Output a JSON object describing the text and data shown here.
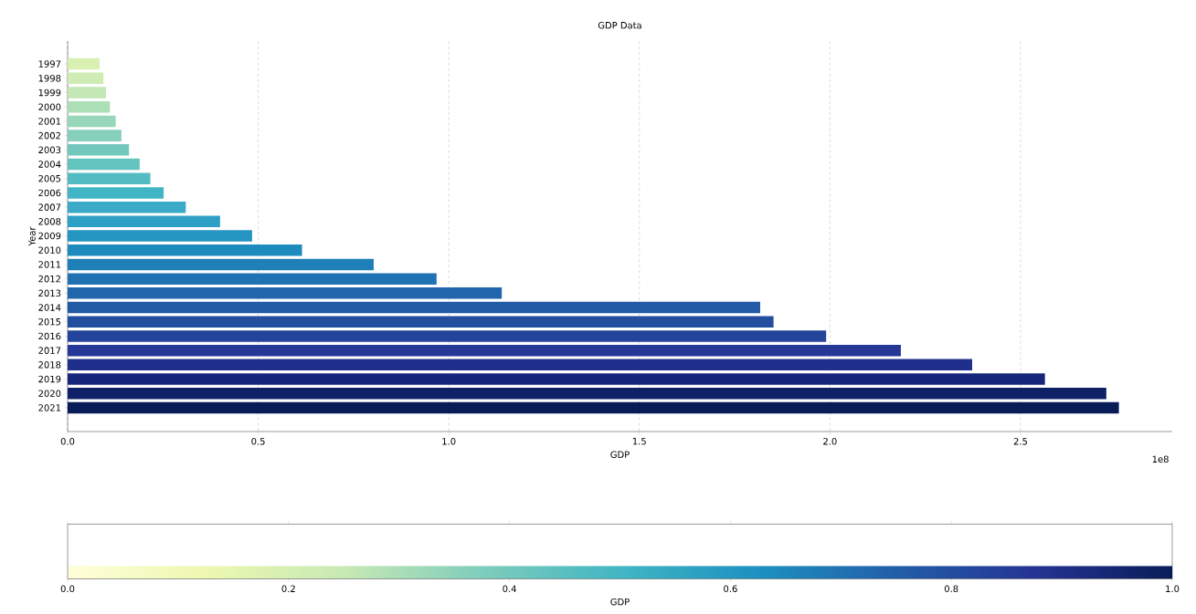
{
  "chart_data": {
    "type": "bar",
    "orientation": "horizontal",
    "title": "GDP Data",
    "xlabel": "GDP",
    "ylabel": "Year",
    "categories": [
      "1997",
      "1998",
      "1999",
      "2000",
      "2001",
      "2002",
      "2003",
      "2004",
      "2005",
      "2006",
      "2007",
      "2008",
      "2009",
      "2010",
      "2011",
      "2012",
      "2013",
      "2014",
      "2015",
      "2016",
      "2017",
      "2018",
      "2019",
      "2020",
      "2021"
    ],
    "values": [
      0.084,
      0.094,
      0.101,
      0.111,
      0.126,
      0.141,
      0.161,
      0.189,
      0.217,
      0.252,
      0.31,
      0.4,
      0.484,
      0.615,
      0.803,
      0.968,
      1.139,
      1.817,
      1.852,
      1.99,
      2.186,
      2.373,
      2.564,
      2.725,
      2.758
    ],
    "colors": [
      "#d9f0b3",
      "#cfecb4",
      "#c3e7b5",
      "#addfb6",
      "#97d6b8",
      "#86cfba",
      "#73c8bd",
      "#63c3bf",
      "#52bcc2",
      "#42b5c5",
      "#3aaac6",
      "#2fa0c5",
      "#2496c1",
      "#1e8bbe",
      "#1f80b8",
      "#2172b3",
      "#2166ac",
      "#225aa5",
      "#234ea0",
      "#24449b",
      "#253898",
      "#202f8b",
      "#16267a",
      "#0e2166",
      "#081d58"
    ],
    "xlim": [
      0,
      2.898
    ],
    "xticks": [
      {
        "value": 0,
        "label": "0.0"
      },
      0.5,
      {
        "value": 1,
        "label": "1.0"
      },
      1.5,
      {
        "value": 2,
        "label": "2.0"
      },
      2.5
    ],
    "grid": "x",
    "annotations": [
      "1e8"
    ],
    "clabel": "GDP",
    "clim": [
      0,
      1
    ],
    "cticks": [
      {
        "value": 0,
        "label": "0.0"
      },
      {
        "value": 0.2,
        "label": "0.2"
      },
      {
        "value": 0.4,
        "label": "0.4"
      },
      {
        "value": 0.6,
        "label": "0.6"
      },
      {
        "value": 0.8,
        "label": "0.8"
      },
      {
        "value": 1,
        "label": "1.0"
      }
    ]
  }
}
